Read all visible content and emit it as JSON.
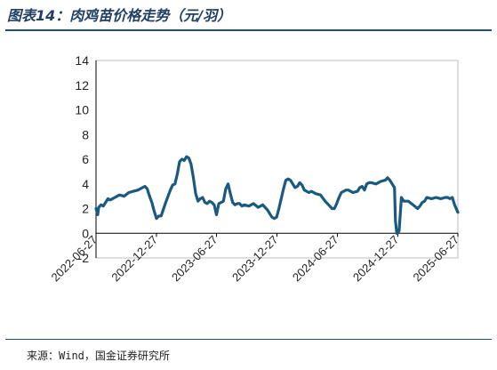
{
  "figure": {
    "title": "图表14：肉鸡苗价格走势（元/羽）",
    "source": "来源：Wind，国金证券研究所"
  },
  "colors": {
    "line": "#1b5a80",
    "axis": "#000000",
    "frame": "#bfbfbf",
    "title": "#1f3f66",
    "rule": "#1f4e79"
  },
  "chart_data": {
    "type": "line",
    "title": "",
    "xlabel": "",
    "ylabel": "",
    "ylim": [
      -2,
      14
    ],
    "yticks": [
      -2,
      0,
      2,
      4,
      6,
      8,
      10,
      12,
      14
    ],
    "x_tick_labels": [
      "2022-06-27",
      "2022-12-27",
      "2023-06-27",
      "2023-12-27",
      "2024-06-27",
      "2024-12-27",
      "2025-06-27"
    ],
    "grid": false,
    "legend": "none",
    "series": [
      {
        "x": [
          "2022-06-27",
          "2022-07-02",
          "2022-07-05",
          "2022-07-12",
          "2022-07-19",
          "2022-07-26",
          "2022-08-02",
          "2022-08-09",
          "2022-08-23",
          "2022-09-06",
          "2022-09-20",
          "2022-10-04",
          "2022-10-18",
          "2022-11-01",
          "2022-11-15",
          "2022-11-22",
          "2022-11-29",
          "2022-12-06",
          "2022-12-13",
          "2022-12-20",
          "2022-12-27",
          "2023-01-03",
          "2023-01-10",
          "2023-01-24",
          "2023-01-31",
          "2023-02-07",
          "2023-02-14",
          "2023-02-21",
          "2023-02-28",
          "2023-03-07",
          "2023-03-14",
          "2023-03-21",
          "2023-03-28",
          "2023-04-04",
          "2023-04-11",
          "2023-04-18",
          "2023-04-25",
          "2023-05-02",
          "2023-05-09",
          "2023-05-16",
          "2023-05-23",
          "2023-05-30",
          "2023-06-06",
          "2023-06-13",
          "2023-06-20",
          "2023-06-27",
          "2023-07-04",
          "2023-07-11",
          "2023-07-18",
          "2023-07-25",
          "2023-08-01",
          "2023-08-08",
          "2023-08-15",
          "2023-08-22",
          "2023-08-29",
          "2023-09-05",
          "2023-09-12",
          "2023-09-19",
          "2023-10-03",
          "2023-10-17",
          "2023-10-31",
          "2023-11-14",
          "2023-11-28",
          "2023-12-12",
          "2023-12-19",
          "2023-12-26",
          "2024-01-02",
          "2024-01-09",
          "2024-01-16",
          "2024-01-23",
          "2024-01-30",
          "2024-02-06",
          "2024-02-13",
          "2024-02-20",
          "2024-02-27",
          "2024-03-05",
          "2024-03-12",
          "2024-03-19",
          "2024-03-26",
          "2024-04-02",
          "2024-04-09",
          "2024-04-23",
          "2024-05-07",
          "2024-05-21",
          "2024-06-04",
          "2024-06-11",
          "2024-06-18",
          "2024-06-25",
          "2024-07-02",
          "2024-07-09",
          "2024-07-16",
          "2024-07-23",
          "2024-07-30",
          "2024-08-13",
          "2024-08-27",
          "2024-09-03",
          "2024-09-10",
          "2024-09-17",
          "2024-09-24",
          "2024-10-01",
          "2024-10-08",
          "2024-10-22",
          "2024-11-05",
          "2024-11-19",
          "2024-11-26",
          "2024-12-03",
          "2024-12-10",
          "2024-12-17",
          "2024-12-20",
          "2024-12-24",
          "2024-12-27",
          "2024-12-31",
          "2025-01-07",
          "2025-01-14",
          "2025-01-28",
          "2025-02-11",
          "2025-02-25",
          "2025-03-04",
          "2025-03-11",
          "2025-03-18",
          "2025-03-25",
          "2025-04-08",
          "2025-04-22",
          "2025-05-06",
          "2025-05-20",
          "2025-05-27",
          "2025-06-03",
          "2025-06-10",
          "2025-06-17",
          "2025-06-27"
        ],
        "y": [
          2.0,
          1.5,
          2.1,
          2.3,
          2.2,
          2.5,
          2.8,
          2.7,
          2.9,
          3.1,
          3.0,
          3.3,
          3.4,
          3.5,
          3.7,
          3.8,
          3.6,
          3.0,
          2.5,
          1.8,
          1.2,
          1.4,
          1.4,
          2.5,
          3.0,
          3.5,
          3.9,
          4.0,
          4.8,
          5.8,
          6.0,
          5.9,
          6.2,
          6.1,
          5.6,
          4.5,
          3.2,
          2.6,
          2.8,
          2.9,
          2.5,
          2.4,
          2.6,
          2.5,
          2.3,
          1.5,
          2.4,
          2.5,
          2.6,
          3.6,
          4.0,
          3.2,
          2.5,
          2.3,
          2.4,
          2.4,
          2.2,
          2.3,
          2.2,
          2.4,
          2.1,
          2.3,
          1.9,
          1.3,
          1.2,
          1.3,
          2.0,
          2.8,
          3.6,
          4.3,
          4.4,
          4.3,
          4.0,
          3.7,
          3.8,
          4.1,
          3.9,
          3.5,
          3.4,
          3.3,
          3.4,
          3.2,
          3.1,
          2.6,
          2.2,
          2.0,
          2.0,
          2.4,
          2.9,
          3.3,
          3.4,
          3.5,
          3.5,
          3.3,
          3.4,
          3.7,
          3.8,
          3.5,
          4.0,
          4.1,
          4.1,
          4.0,
          4.2,
          4.3,
          4.5,
          4.3,
          4.0,
          3.7,
          1.0,
          0.0,
          0.0,
          0.2,
          2.9,
          2.6,
          2.6,
          2.3,
          2.0,
          2.2,
          2.5,
          2.6,
          2.9,
          2.8,
          2.9,
          2.8,
          2.9,
          2.9,
          2.8,
          2.9,
          2.3,
          1.7
        ]
      }
    ]
  }
}
